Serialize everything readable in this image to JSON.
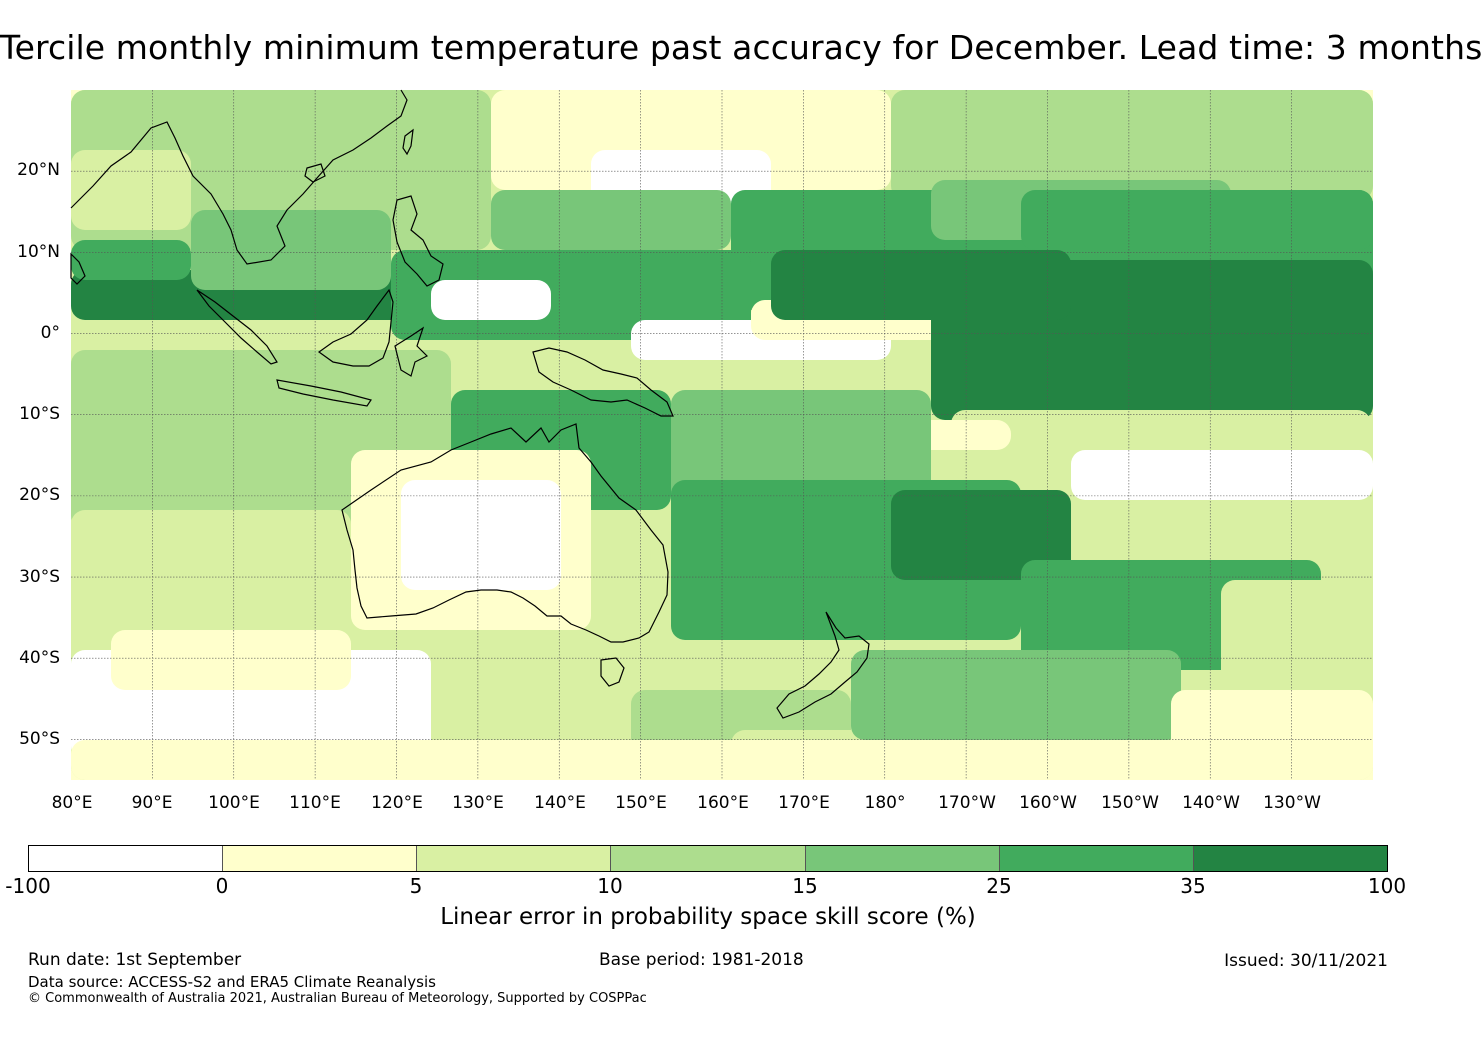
{
  "title": "Tercile monthly minimum temperature past accuracy for December. Lead time: 3 months",
  "map": {
    "latitude_labels": [
      "20°N",
      "10°N",
      "0°",
      "10°S",
      "20°S",
      "30°S",
      "40°S",
      "50°S"
    ],
    "longitude_labels": [
      "80°E",
      "90°E",
      "100°E",
      "110°E",
      "120°E",
      "130°E",
      "140°E",
      "150°E",
      "160°E",
      "170°E",
      "180°",
      "170°W",
      "160°W",
      "150°W",
      "140°W",
      "130°W"
    ],
    "extent": {
      "lon_min": 80,
      "lon_max": 240,
      "lat_min": -55,
      "lat_max": 30
    }
  },
  "colorbar": {
    "ticks": [
      "-100",
      "0",
      "5",
      "10",
      "15",
      "25",
      "35",
      "100"
    ],
    "colors": [
      "#ffffff",
      "#ffffcc",
      "#d9f0a3",
      "#addd8e",
      "#78c679",
      "#41ab5d",
      "#238443"
    ],
    "label": "Linear error in probability space skill score (%)"
  },
  "footer": {
    "run_date": "Run date: 1st September",
    "base_period": "Base period: 1981-2018",
    "issued": "Issued: 30/11/2021",
    "data_source": "Data source: ACCESS-S2 and ERA5 Climate Reanalysis",
    "copyright": "© Commonwealth of Australia 2021, Australian Bureau of Meteorology, Supported by COSPPac"
  }
}
